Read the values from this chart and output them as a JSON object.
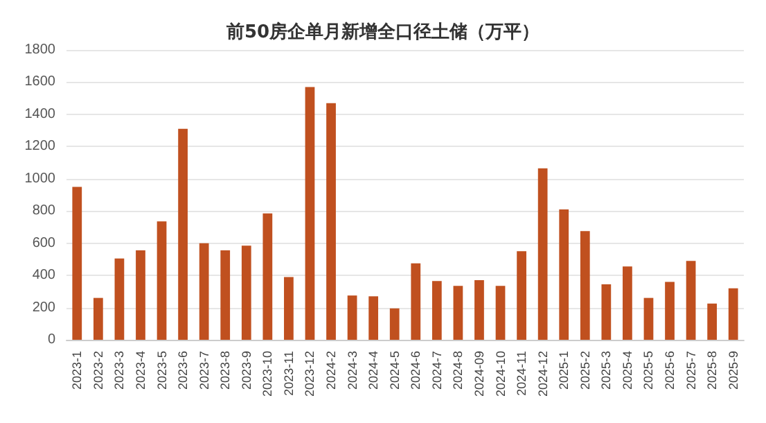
{
  "chart_data": {
    "type": "bar",
    "title": "前50房企单月新增全口径土储（万平）",
    "categories": [
      "2023-1",
      "2023-2",
      "2023-3",
      "2023-4",
      "2023-5",
      "2023-6",
      "2023-7",
      "2023-8",
      "2023-9",
      "2023-10",
      "2023-11",
      "2023-12",
      "2024-2",
      "2024-3",
      "2024-4",
      "2024-5",
      "2024-6",
      "2024-7",
      "2024-8",
      "2024-09",
      "2024-10",
      "2024-11",
      "2024-12",
      "2025-1",
      "2025-2",
      "2025-3",
      "2025-4",
      "2025-5",
      "2025-6",
      "2025-7",
      "2025-8",
      "2025-9"
    ],
    "values": [
      950,
      260,
      505,
      555,
      735,
      1310,
      600,
      555,
      585,
      785,
      390,
      1570,
      1470,
      275,
      270,
      195,
      475,
      365,
      335,
      370,
      335,
      550,
      1065,
      810,
      675,
      345,
      455,
      260,
      360,
      490,
      225,
      320
    ],
    "color": "#c0501f",
    "ylim": [
      0,
      1800
    ],
    "yticks": [
      0,
      200,
      400,
      600,
      800,
      1000,
      1200,
      1400,
      1600,
      1800
    ],
    "grid": "y"
  }
}
